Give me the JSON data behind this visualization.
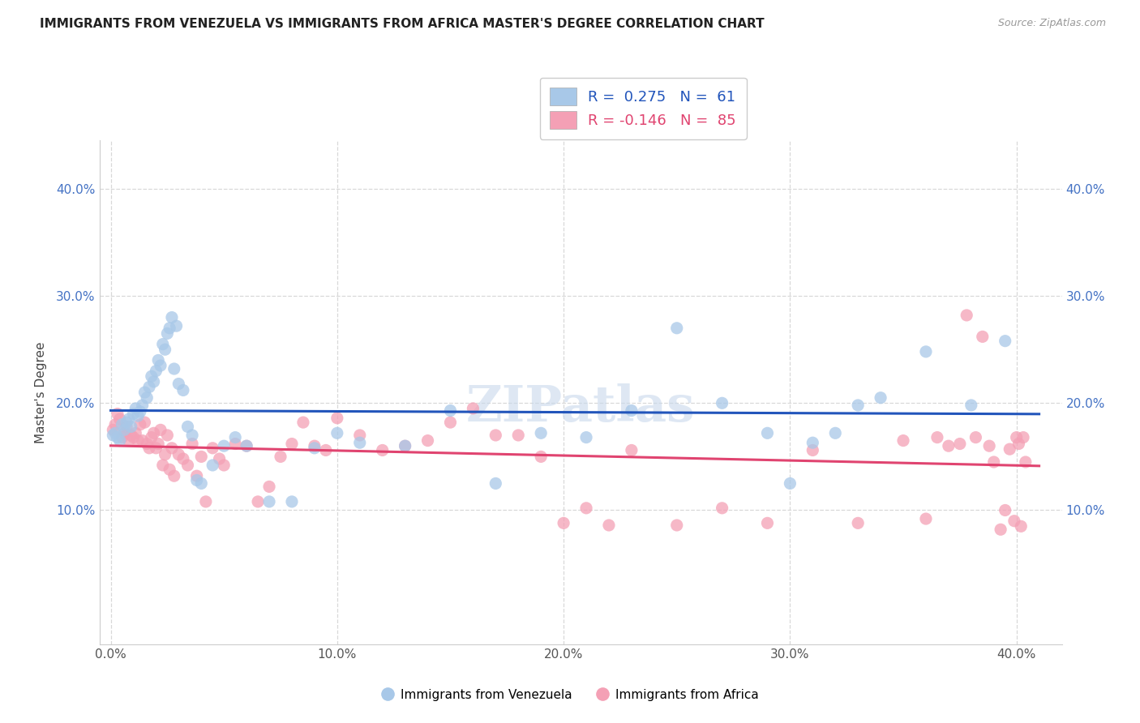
{
  "title": "IMMIGRANTS FROM VENEZUELA VS IMMIGRANTS FROM AFRICA MASTER'S DEGREE CORRELATION CHART",
  "source": "Source: ZipAtlas.com",
  "ylabel": "Master's Degree",
  "xlim": [
    0.0,
    0.42
  ],
  "ylim": [
    -0.02,
    0.44
  ],
  "plot_xlim": [
    0.0,
    0.4
  ],
  "plot_ylim": [
    0.0,
    0.4
  ],
  "xticks": [
    0.0,
    0.1,
    0.2,
    0.3,
    0.4
  ],
  "yticks": [
    0.1,
    0.2,
    0.3,
    0.4
  ],
  "ytick_labels": [
    "10.0%",
    "20.0%",
    "30.0%",
    "40.0%"
  ],
  "xtick_labels": [
    "0.0%",
    "10.0%",
    "20.0%",
    "30.0%",
    "40.0%"
  ],
  "color_blue": "#a8c8e8",
  "color_pink": "#f4a0b5",
  "line_blue": "#2255bb",
  "line_pink": "#e04470",
  "legend_label1": "Immigrants from Venezuela",
  "legend_label2": "Immigrants from Africa",
  "watermark": "ZIPatlas",
  "background_color": "#ffffff",
  "grid_color": "#d8d8d8",
  "R_venezuela": 0.275,
  "N_venezuela": 61,
  "R_africa": -0.146,
  "N_africa": 85,
  "venezuela_x": [
    0.001,
    0.002,
    0.003,
    0.004,
    0.005,
    0.006,
    0.007,
    0.008,
    0.009,
    0.01,
    0.011,
    0.012,
    0.013,
    0.014,
    0.015,
    0.016,
    0.017,
    0.018,
    0.019,
    0.02,
    0.021,
    0.022,
    0.023,
    0.024,
    0.025,
    0.026,
    0.027,
    0.028,
    0.029,
    0.03,
    0.032,
    0.034,
    0.036,
    0.038,
    0.04,
    0.045,
    0.05,
    0.055,
    0.06,
    0.07,
    0.08,
    0.09,
    0.1,
    0.11,
    0.13,
    0.15,
    0.17,
    0.19,
    0.21,
    0.23,
    0.25,
    0.27,
    0.29,
    0.3,
    0.31,
    0.32,
    0.33,
    0.34,
    0.36,
    0.38,
    0.395
  ],
  "venezuela_y": [
    0.17,
    0.172,
    0.168,
    0.165,
    0.18,
    0.175,
    0.182,
    0.185,
    0.178,
    0.19,
    0.195,
    0.188,
    0.192,
    0.198,
    0.21,
    0.205,
    0.215,
    0.225,
    0.22,
    0.23,
    0.24,
    0.235,
    0.255,
    0.25,
    0.265,
    0.27,
    0.28,
    0.232,
    0.272,
    0.218,
    0.212,
    0.178,
    0.17,
    0.128,
    0.125,
    0.142,
    0.16,
    0.168,
    0.16,
    0.108,
    0.108,
    0.158,
    0.172,
    0.163,
    0.16,
    0.193,
    0.125,
    0.172,
    0.168,
    0.193,
    0.27,
    0.2,
    0.172,
    0.125,
    0.163,
    0.172,
    0.198,
    0.205,
    0.248,
    0.198,
    0.258
  ],
  "africa_x": [
    0.001,
    0.002,
    0.003,
    0.004,
    0.005,
    0.006,
    0.007,
    0.008,
    0.009,
    0.01,
    0.011,
    0.012,
    0.013,
    0.014,
    0.015,
    0.016,
    0.017,
    0.018,
    0.019,
    0.02,
    0.021,
    0.022,
    0.023,
    0.024,
    0.025,
    0.026,
    0.027,
    0.028,
    0.03,
    0.032,
    0.034,
    0.036,
    0.038,
    0.04,
    0.042,
    0.045,
    0.048,
    0.05,
    0.055,
    0.06,
    0.065,
    0.07,
    0.075,
    0.08,
    0.085,
    0.09,
    0.095,
    0.1,
    0.11,
    0.12,
    0.13,
    0.14,
    0.15,
    0.16,
    0.17,
    0.18,
    0.19,
    0.2,
    0.21,
    0.22,
    0.23,
    0.25,
    0.27,
    0.29,
    0.31,
    0.33,
    0.35,
    0.36,
    0.365,
    0.37,
    0.375,
    0.378,
    0.382,
    0.385,
    0.388,
    0.39,
    0.393,
    0.395,
    0.397,
    0.399,
    0.4,
    0.401,
    0.402,
    0.403,
    0.404
  ],
  "africa_y": [
    0.175,
    0.18,
    0.19,
    0.185,
    0.168,
    0.172,
    0.178,
    0.165,
    0.17,
    0.168,
    0.172,
    0.165,
    0.18,
    0.165,
    0.182,
    0.162,
    0.158,
    0.168,
    0.172,
    0.158,
    0.162,
    0.175,
    0.142,
    0.152,
    0.17,
    0.138,
    0.158,
    0.132,
    0.152,
    0.148,
    0.142,
    0.162,
    0.132,
    0.15,
    0.108,
    0.158,
    0.148,
    0.142,
    0.162,
    0.16,
    0.108,
    0.122,
    0.15,
    0.162,
    0.182,
    0.16,
    0.156,
    0.186,
    0.17,
    0.156,
    0.16,
    0.165,
    0.182,
    0.195,
    0.17,
    0.17,
    0.15,
    0.088,
    0.102,
    0.086,
    0.156,
    0.086,
    0.102,
    0.088,
    0.156,
    0.088,
    0.165,
    0.092,
    0.168,
    0.16,
    0.162,
    0.282,
    0.168,
    0.262,
    0.16,
    0.145,
    0.082,
    0.1,
    0.157,
    0.09,
    0.168,
    0.162,
    0.085,
    0.168,
    0.145
  ]
}
